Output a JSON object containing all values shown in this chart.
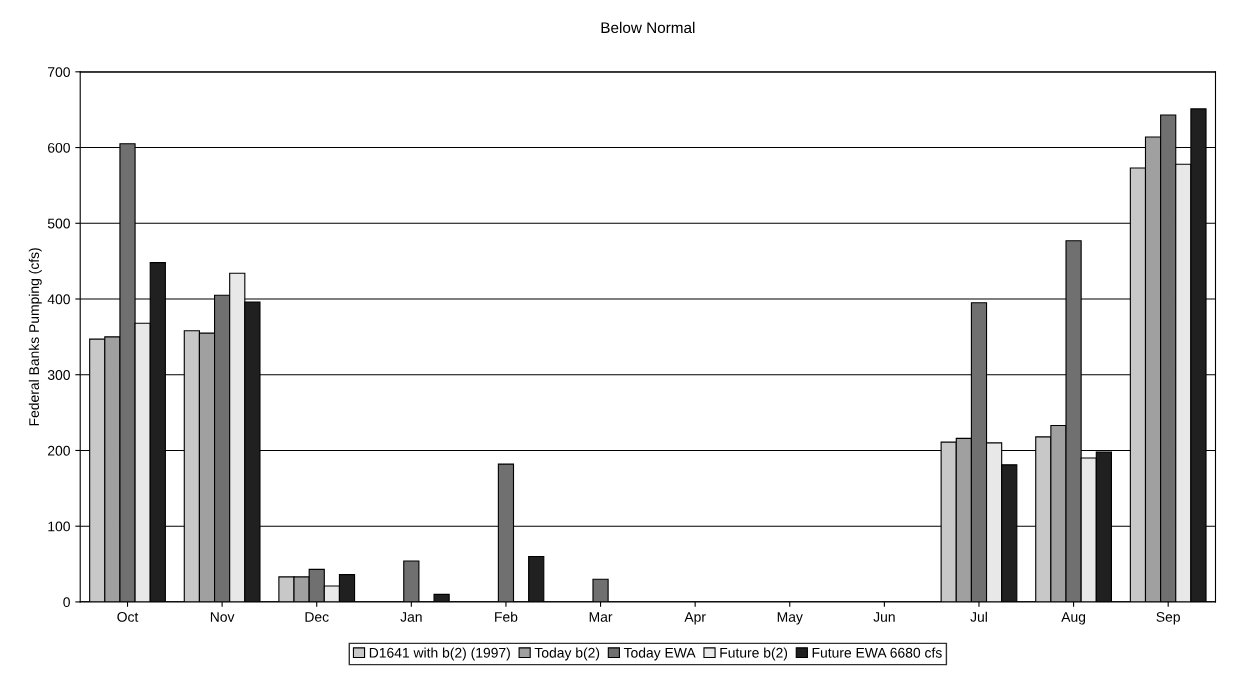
{
  "chart_data": {
    "type": "bar",
    "title": "Below Normal",
    "ylabel": "Federal Banks Pumping (cfs)",
    "categories": [
      "Oct",
      "Nov",
      "Dec",
      "Jan",
      "Feb",
      "Mar",
      "Apr",
      "May",
      "Jun",
      "Jul",
      "Aug",
      "Sep"
    ],
    "series": [
      {
        "name": "D1641 with b(2) (1997)",
        "color": "#c8c8c8",
        "values": [
          347,
          358,
          33,
          0,
          0,
          0,
          0,
          0,
          0,
          211,
          218,
          573
        ]
      },
      {
        "name": "Today b(2)",
        "color": "#a0a0a0",
        "values": [
          350,
          355,
          33,
          0,
          0,
          0,
          0,
          0,
          0,
          216,
          233,
          614
        ]
      },
      {
        "name": "Today EWA",
        "color": "#707070",
        "values": [
          605,
          405,
          43,
          54,
          182,
          30,
          0,
          0,
          0,
          395,
          477,
          643
        ]
      },
      {
        "name": "Future b(2)",
        "color": "#e8e8e8",
        "values": [
          368,
          434,
          21,
          0,
          0,
          0,
          0,
          0,
          0,
          210,
          190,
          578
        ]
      },
      {
        "name": "Future EWA 6680 cfs",
        "color": "#202020",
        "values": [
          448,
          396,
          36,
          10,
          60,
          0,
          0,
          0,
          0,
          181,
          198,
          651
        ]
      }
    ],
    "ylim": [
      0,
      700
    ],
    "yticks": [
      0,
      100,
      200,
      300,
      400,
      500,
      600,
      700
    ],
    "grid": "y",
    "legend": "bottom"
  }
}
